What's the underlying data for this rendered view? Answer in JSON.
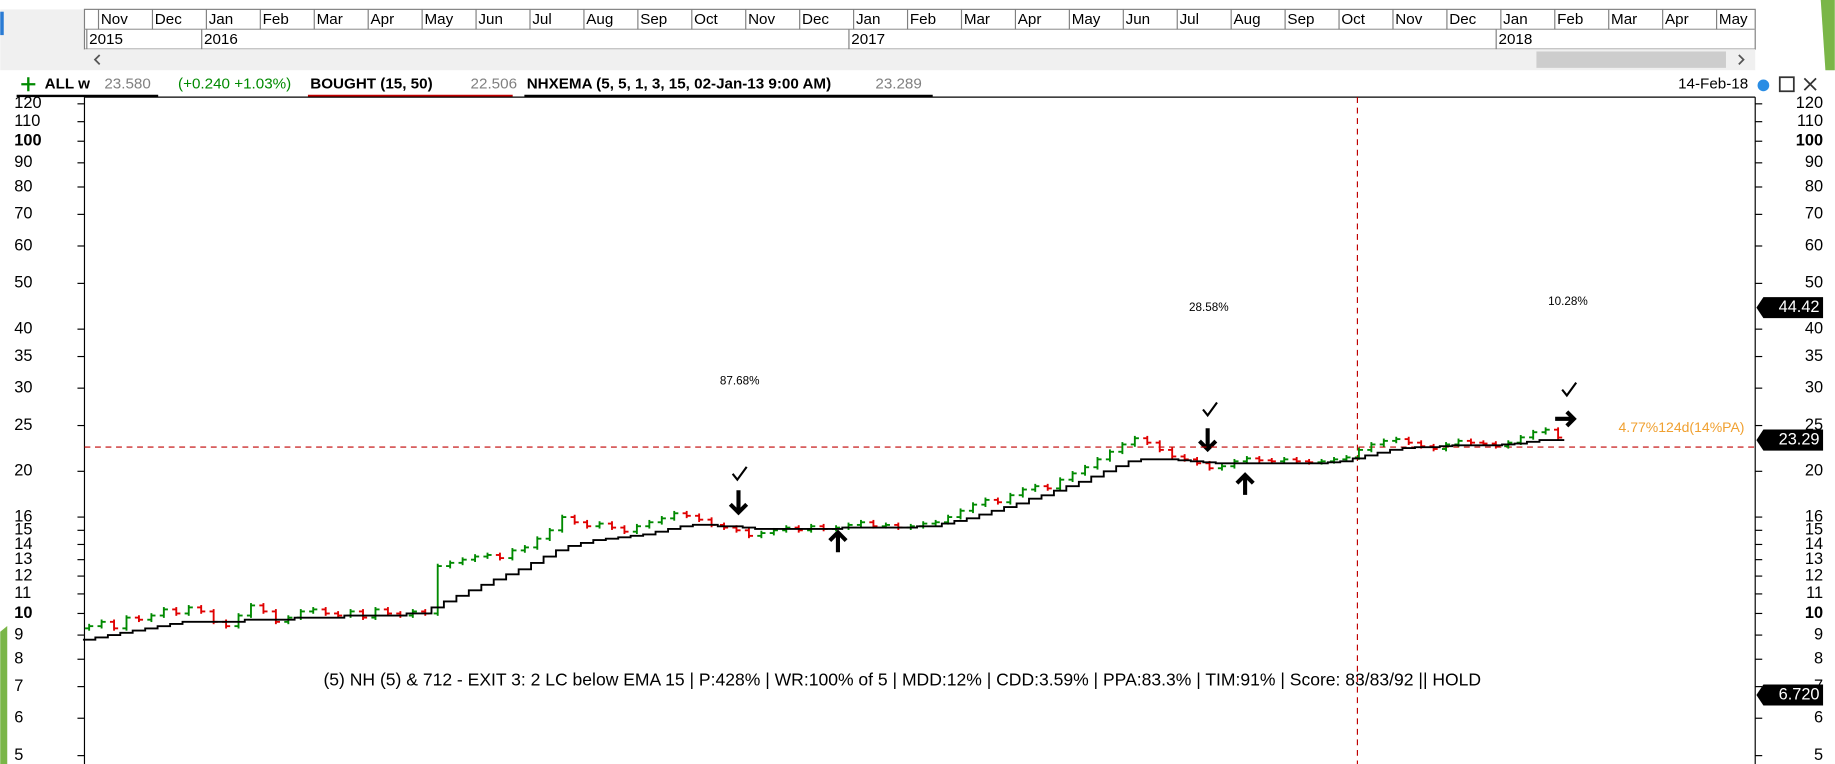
{
  "chart_data": {
    "type": "ohlc",
    "months": [
      "Nov",
      "Dec",
      "Jan",
      "Feb",
      "Mar",
      "Apr",
      "May",
      "Jun",
      "Jul",
      "Aug",
      "Sep",
      "Oct",
      "Nov",
      "Dec",
      "Jan",
      "Feb",
      "Mar",
      "Apr",
      "May",
      "Jun",
      "Jul",
      "Aug",
      "Sep",
      "Oct",
      "Nov",
      "Dec",
      "Jan",
      "Feb",
      "Mar",
      "Apr",
      "May"
    ],
    "years": [
      "2015",
      null,
      "2016",
      null,
      null,
      null,
      null,
      null,
      null,
      null,
      null,
      null,
      null,
      null,
      "2017",
      null,
      null,
      null,
      null,
      null,
      null,
      null,
      null,
      null,
      null,
      null,
      "2018",
      null,
      null,
      null,
      null
    ],
    "open": [
      9.3,
      9.4,
      9.6,
      9.3,
      9.8,
      9.7,
      9.9,
      10.2,
      10.0,
      10.3,
      10.1,
      9.6,
      9.4,
      9.9,
      10.4,
      10.1,
      9.6,
      9.8,
      10.1,
      10.2,
      10.0,
      9.9,
      10.1,
      9.8,
      10.2,
      10.0,
      9.9,
      10.1,
      10.0,
      12.6,
      12.8,
      13.0,
      13.2,
      13.3,
      13.1,
      13.6,
      13.8,
      14.4,
      15.0,
      16.0,
      15.6,
      15.3,
      15.5,
      15.2,
      14.9,
      15.3,
      15.6,
      15.9,
      16.3,
      16.1,
      15.8,
      15.4,
      15.2,
      15.0,
      14.6,
      14.8,
      15.0,
      15.2,
      15.0,
      15.3,
      15.1,
      15.2,
      15.4,
      15.6,
      15.3,
      15.4,
      15.2,
      15.3,
      15.5,
      15.6,
      16.0,
      16.5,
      17.0,
      17.4,
      17.2,
      17.8,
      18.3,
      18.6,
      18.4,
      19.2,
      19.8,
      20.4,
      21.2,
      22.0,
      22.8,
      23.5,
      23.0,
      22.2,
      21.5,
      21.2,
      20.8,
      20.3,
      20.5,
      21.0,
      21.3,
      21.1,
      21.0,
      21.2,
      21.0,
      20.9,
      21.0,
      21.2,
      21.4,
      22.2,
      22.8,
      23.2,
      23.4,
      23.0,
      22.6,
      22.3,
      22.8,
      23.2,
      23.0,
      22.9,
      22.6,
      23.0,
      23.6,
      24.2,
      24.5
    ],
    "close": [
      9.4,
      9.6,
      9.3,
      9.8,
      9.7,
      9.9,
      10.2,
      10.0,
      10.3,
      10.1,
      9.6,
      9.4,
      9.9,
      10.4,
      10.1,
      9.6,
      9.8,
      10.1,
      10.2,
      10.0,
      9.9,
      10.1,
      9.8,
      10.2,
      10.0,
      9.9,
      10.1,
      10.0,
      12.6,
      12.8,
      13.0,
      13.2,
      13.3,
      13.1,
      13.6,
      13.8,
      14.4,
      15.0,
      16.0,
      15.6,
      15.3,
      15.5,
      15.2,
      14.9,
      15.3,
      15.6,
      15.9,
      16.3,
      16.1,
      15.8,
      15.4,
      15.2,
      15.0,
      14.6,
      14.8,
      15.0,
      15.2,
      15.0,
      15.3,
      15.1,
      15.2,
      15.4,
      15.6,
      15.3,
      15.4,
      15.2,
      15.3,
      15.5,
      15.6,
      16.0,
      16.5,
      17.0,
      17.4,
      17.2,
      17.8,
      18.3,
      18.6,
      18.4,
      19.2,
      19.8,
      20.4,
      21.2,
      22.0,
      22.8,
      23.5,
      23.0,
      22.2,
      21.5,
      21.2,
      20.8,
      20.3,
      20.5,
      21.0,
      21.3,
      21.1,
      21.0,
      21.2,
      21.0,
      20.9,
      21.0,
      21.2,
      21.4,
      22.2,
      22.8,
      23.2,
      23.4,
      23.0,
      22.6,
      22.3,
      22.8,
      23.2,
      23.0,
      22.9,
      22.6,
      23.0,
      23.6,
      24.2,
      24.5,
      23.58
    ],
    "ema": [
      8.8,
      8.9,
      9.0,
      9.1,
      9.2,
      9.3,
      9.4,
      9.5,
      9.6,
      9.6,
      9.6,
      9.6,
      9.6,
      9.7,
      9.7,
      9.7,
      9.7,
      9.8,
      9.8,
      9.8,
      9.8,
      9.9,
      9.9,
      9.9,
      9.9,
      9.9,
      10.0,
      10.0,
      10.3,
      10.6,
      10.9,
      11.2,
      11.5,
      11.8,
      12.1,
      12.4,
      12.8,
      13.2,
      13.6,
      13.9,
      14.1,
      14.3,
      14.4,
      14.5,
      14.6,
      14.7,
      14.9,
      15.1,
      15.3,
      15.4,
      15.4,
      15.3,
      15.3,
      15.2,
      15.1,
      15.1,
      15.1,
      15.1,
      15.1,
      15.1,
      15.1,
      15.2,
      15.2,
      15.2,
      15.2,
      15.2,
      15.2,
      15.3,
      15.3,
      15.5,
      15.7,
      15.9,
      16.2,
      16.5,
      16.8,
      17.1,
      17.5,
      17.8,
      18.2,
      18.6,
      19.0,
      19.5,
      20.0,
      20.5,
      21.0,
      21.2,
      21.2,
      21.2,
      21.1,
      21.0,
      20.9,
      20.8,
      20.8,
      20.8,
      20.8,
      20.8,
      20.8,
      20.8,
      20.8,
      20.8,
      20.9,
      21.0,
      21.3,
      21.6,
      21.9,
      22.2,
      22.4,
      22.5,
      22.5,
      22.6,
      22.7,
      22.7,
      22.7,
      22.7,
      22.8,
      22.9,
      23.1,
      23.3,
      23.29
    ],
    "up_color": "#008a00",
    "down_color": "#e00000",
    "ema_color": "#000000",
    "bought_color": "#c00000",
    "legend": {
      "symbol": "ALL w",
      "last": {
        "value": 23.58,
        "label": "23.580"
      },
      "change": "(+0.240 +1.03%)",
      "bought_name": "BOUGHT (15, 50)",
      "bought": 22.506,
      "ema_name": "NHXEMA (5, 5, 1, 3, 15, 02-Jan-13 9:00 AM)",
      "ema_last": 23.289
    },
    "date": "14-Feb-18",
    "ylim": [
      4.8,
      124
    ],
    "log": true,
    "yticks": [
      5,
      6,
      7,
      8,
      9,
      10,
      11,
      12,
      13,
      14,
      15,
      16,
      20,
      25,
      30,
      35,
      40,
      50,
      60,
      70,
      80,
      90,
      100,
      110,
      120
    ],
    "right_tags": [
      44.42,
      23.29,
      {
        "value": 6.72,
        "label": "6.720"
      }
    ],
    "annotations": [
      "87.68%",
      "28.58%",
      "10.28%",
      "4.77%124d(14%PA)"
    ],
    "status": "(5) NH (5) & 712 - EXIT 3: 2 LC below EMA 15 | P:428% | WR:100% of 5 | MDD:12% | CDD:3.59% | PPA:83.3% | TIM:91% | Score: 83/83/92 ||  HOLD"
  }
}
